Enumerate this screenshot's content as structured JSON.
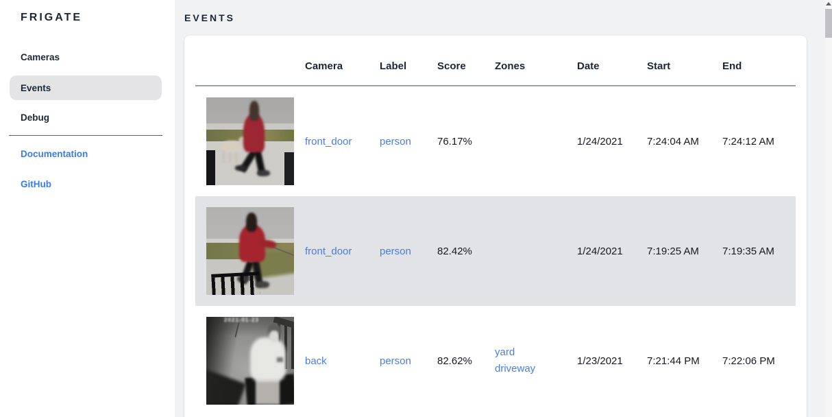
{
  "brand": "FRIGATE",
  "sidebar": {
    "items": [
      {
        "label": "Cameras",
        "selected": false
      },
      {
        "label": "Events",
        "selected": true
      },
      {
        "label": "Debug",
        "selected": false
      }
    ],
    "links": [
      {
        "label": "Documentation"
      },
      {
        "label": "GitHub"
      }
    ]
  },
  "page": {
    "title": "EVENTS"
  },
  "table": {
    "columns": [
      "Camera",
      "Label",
      "Score",
      "Zones",
      "Date",
      "Start",
      "End"
    ],
    "rows": [
      {
        "camera": "front_door",
        "label": "person",
        "score": "76.17%",
        "zones": [],
        "date": "1/24/2021",
        "start": "7:24:04 AM",
        "end": "7:24:12 AM",
        "highlighted": false,
        "thumbnail_desc": "person in red coat walking dog on sidewalk"
      },
      {
        "camera": "front_door",
        "label": "person",
        "score": "82.42%",
        "zones": [],
        "date": "1/24/2021",
        "start": "7:19:25 AM",
        "end": "7:19:35 AM",
        "highlighted": true,
        "thumbnail_desc": "person in red hoodie walking dog past railing"
      },
      {
        "camera": "back",
        "label": "person",
        "score": "82.62%",
        "zones": [
          "yard",
          "driveway"
        ],
        "date": "1/23/2021",
        "start": "7:21:44 PM",
        "end": "7:22:06 PM",
        "highlighted": false,
        "thumbnail_desc": "night infrared view of person in white shirt on porch",
        "timestamp_overlay": "2021-01-23"
      }
    ]
  },
  "colors": {
    "accent_blue": "#4a7de4",
    "navy_text": "#1b2537",
    "page_bg": "#f1f2f4",
    "row_highlight": "#e2e3e6",
    "selected_pill": "#e4e4e6"
  }
}
